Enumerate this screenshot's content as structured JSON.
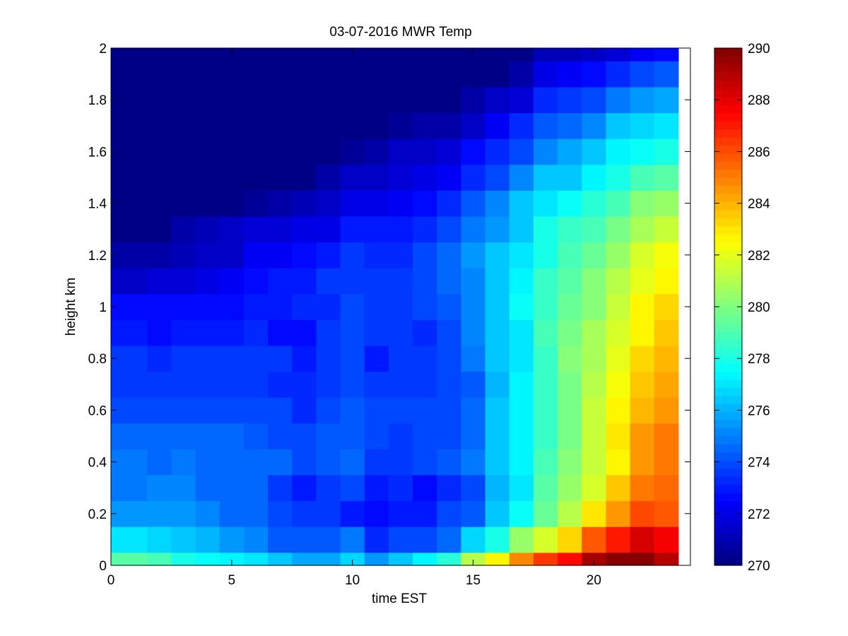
{
  "chart_data": {
    "type": "heatmap",
    "title": "03-07-2016 MWR Temp",
    "xlabel": "time EST",
    "ylabel": "height km",
    "xlim": [
      0,
      24
    ],
    "ylim": [
      0,
      2
    ],
    "x_ticks": [
      0,
      5,
      10,
      15,
      20
    ],
    "y_ticks": [
      0,
      0.2,
      0.4,
      0.6,
      0.8,
      1,
      1.2,
      1.4,
      1.6,
      1.8,
      2
    ],
    "colorbar": {
      "colormap": "jet",
      "clim": [
        270,
        290
      ],
      "ticks": [
        270,
        272,
        274,
        276,
        278,
        280,
        282,
        284,
        286,
        288,
        290
      ],
      "levels": 64
    },
    "x_centers": [
      0.5,
      1.5,
      2.5,
      3.5,
      4.5,
      5.5,
      6.5,
      7.5,
      8.5,
      9.5,
      10.5,
      11.5,
      12.5,
      13.5,
      14.5,
      15.5,
      16.5,
      17.5,
      18.5,
      19.5,
      20.5,
      21.5,
      22.5
    ],
    "x_edges": [
      0,
      1.5,
      2.5,
      3.5,
      4.5,
      5.5,
      6.5,
      7.5,
      8.5,
      9.5,
      10.5,
      11.5,
      12.5,
      13.5,
      14.5,
      15.5,
      16.5,
      17.5,
      18.5,
      19.5,
      20.5,
      21.5,
      22.5,
      23.5
    ],
    "height_edges": [
      0,
      0.05,
      0.15,
      0.25,
      0.35,
      0.45,
      0.55,
      0.65,
      0.75,
      0.85,
      0.95,
      1.05,
      1.15,
      1.25,
      1.35,
      1.45,
      1.55,
      1.65,
      1.75,
      1.85,
      1.95,
      2.0
    ],
    "values": [
      [
        279.2,
        278.8,
        278.0,
        277.6,
        277.2,
        277.0,
        276.3,
        275.8,
        275.8,
        276.8,
        275.6,
        276.3,
        277.3,
        278.4,
        281.0,
        282.5,
        284.8,
        286.5,
        287.3,
        289.2,
        290.0,
        290.0,
        289.0
      ],
      [
        277.0,
        276.6,
        276.3,
        276.0,
        275.4,
        275.0,
        274.3,
        274.3,
        274.3,
        274.8,
        273.3,
        273.8,
        274.0,
        274.4,
        276.6,
        278.0,
        280.5,
        281.8,
        283.3,
        285.7,
        287.0,
        288.2,
        287.5
      ],
      [
        275.5,
        275.4,
        275.4,
        275.0,
        274.4,
        274.4,
        274.0,
        273.5,
        273.5,
        273.0,
        272.6,
        273.0,
        273.0,
        273.8,
        274.3,
        276.3,
        277.6,
        279.5,
        281.0,
        283.0,
        284.5,
        286.0,
        285.7
      ],
      [
        274.8,
        275.0,
        275.0,
        274.4,
        274.4,
        274.4,
        273.5,
        273.0,
        273.5,
        274.0,
        273.0,
        273.3,
        272.8,
        273.3,
        274.0,
        276.0,
        277.0,
        279.2,
        280.5,
        281.8,
        283.6,
        285.2,
        285.6
      ],
      [
        274.8,
        274.6,
        274.8,
        274.6,
        274.6,
        274.6,
        274.5,
        273.8,
        274.3,
        274.6,
        273.6,
        273.6,
        274.0,
        274.3,
        274.8,
        276.3,
        277.3,
        279.0,
        280.2,
        281.5,
        282.8,
        284.6,
        285.2
      ],
      [
        274.5,
        274.5,
        274.5,
        274.5,
        274.5,
        274.3,
        274.0,
        274.0,
        274.3,
        274.3,
        273.8,
        273.5,
        273.8,
        274.0,
        274.5,
        276.3,
        277.3,
        278.5,
        279.8,
        281.5,
        283.0,
        284.5,
        285.0
      ],
      [
        274.0,
        274.0,
        274.0,
        274.0,
        274.0,
        274.0,
        273.8,
        273.3,
        274.0,
        274.3,
        273.8,
        273.8,
        273.8,
        274.0,
        274.5,
        276.3,
        277.2,
        278.5,
        279.8,
        281.3,
        282.5,
        284.0,
        284.6
      ],
      [
        273.7,
        273.5,
        273.7,
        273.7,
        273.5,
        273.5,
        273.3,
        273.3,
        273.7,
        274.0,
        273.7,
        273.7,
        273.7,
        274.0,
        274.3,
        276.2,
        277.2,
        278.6,
        279.8,
        281.0,
        282.3,
        283.6,
        284.3
      ],
      [
        273.5,
        273.3,
        273.5,
        273.5,
        273.5,
        273.5,
        273.5,
        273.0,
        273.7,
        274.0,
        273.0,
        273.7,
        273.7,
        274.0,
        274.8,
        276.3,
        277.0,
        278.6,
        280.0,
        280.8,
        282.0,
        283.4,
        284.0
      ],
      [
        273.0,
        272.8,
        273.0,
        273.0,
        273.0,
        273.3,
        272.8,
        272.8,
        273.5,
        274.0,
        273.5,
        273.5,
        273.3,
        273.8,
        275.0,
        276.3,
        277.0,
        278.8,
        279.8,
        280.8,
        281.8,
        282.8,
        283.5
      ],
      [
        272.5,
        272.5,
        272.5,
        272.8,
        272.8,
        273.0,
        273.0,
        273.3,
        273.3,
        273.8,
        273.5,
        273.5,
        274.0,
        274.3,
        275.3,
        276.5,
        277.5,
        278.6,
        279.5,
        280.3,
        281.5,
        282.6,
        283.2
      ],
      [
        271.5,
        271.8,
        271.8,
        272.0,
        272.3,
        272.5,
        273.0,
        273.0,
        273.5,
        273.5,
        273.5,
        273.5,
        274.0,
        274.5,
        275.3,
        276.5,
        277.3,
        278.5,
        279.2,
        280.0,
        281.0,
        282.0,
        282.6
      ],
      [
        270.8,
        270.8,
        271.0,
        271.3,
        271.5,
        272.3,
        272.3,
        272.8,
        273.0,
        273.5,
        273.3,
        273.3,
        273.8,
        274.5,
        275.5,
        276.5,
        277.0,
        278.0,
        279.0,
        279.6,
        280.5,
        281.8,
        282.2
      ],
      [
        270.2,
        270.2,
        270.8,
        271.0,
        271.3,
        271.8,
        271.8,
        272.0,
        272.0,
        273.0,
        273.0,
        273.0,
        273.3,
        273.8,
        274.8,
        275.5,
        276.5,
        278.0,
        278.5,
        279.0,
        279.8,
        280.8,
        281.3
      ],
      [
        270.0,
        270.0,
        270.0,
        270.0,
        270.0,
        270.5,
        270.8,
        271.0,
        271.3,
        272.0,
        272.0,
        272.3,
        272.8,
        273.3,
        274.3,
        275.0,
        276.3,
        277.0,
        277.5,
        278.3,
        279.0,
        280.3,
        280.5
      ],
      [
        270.0,
        270.0,
        270.0,
        270.0,
        270.0,
        270.0,
        270.2,
        270.3,
        270.8,
        271.3,
        271.5,
        271.8,
        272.0,
        272.3,
        273.3,
        273.8,
        275.0,
        276.3,
        276.5,
        277.3,
        278.0,
        278.8,
        279.3
      ],
      [
        270.0,
        270.0,
        270.0,
        270.0,
        270.0,
        270.0,
        270.0,
        270.0,
        270.2,
        270.5,
        270.8,
        271.3,
        271.5,
        271.8,
        272.8,
        273.3,
        273.8,
        275.3,
        275.8,
        276.3,
        277.3,
        277.8,
        278.0
      ],
      [
        270.0,
        270.0,
        270.0,
        270.0,
        270.0,
        270.0,
        270.0,
        270.0,
        270.0,
        270.0,
        270.3,
        270.5,
        270.8,
        270.8,
        271.5,
        272.3,
        273.3,
        274.3,
        274.5,
        275.0,
        276.3,
        276.8,
        277.0
      ],
      [
        270.0,
        270.0,
        270.0,
        270.0,
        270.0,
        270.0,
        270.0,
        270.0,
        270.0,
        270.0,
        270.0,
        270.0,
        270.2,
        270.2,
        270.8,
        271.3,
        271.8,
        273.3,
        273.5,
        274.0,
        274.8,
        275.5,
        275.8
      ],
      [
        270.0,
        270.0,
        270.0,
        270.0,
        270.0,
        270.0,
        270.0,
        270.0,
        270.0,
        270.0,
        270.0,
        270.0,
        270.0,
        270.0,
        270.0,
        270.3,
        270.8,
        272.0,
        272.3,
        272.5,
        273.3,
        274.0,
        274.3
      ],
      [
        270.0,
        270.0,
        270.0,
        270.0,
        270.0,
        270.0,
        270.0,
        270.0,
        270.0,
        270.0,
        270.0,
        270.0,
        270.0,
        270.0,
        270.0,
        270.0,
        270.2,
        271.0,
        271.0,
        271.3,
        271.8,
        272.3,
        272.8
      ]
    ],
    "grid": false,
    "legend": "none"
  }
}
